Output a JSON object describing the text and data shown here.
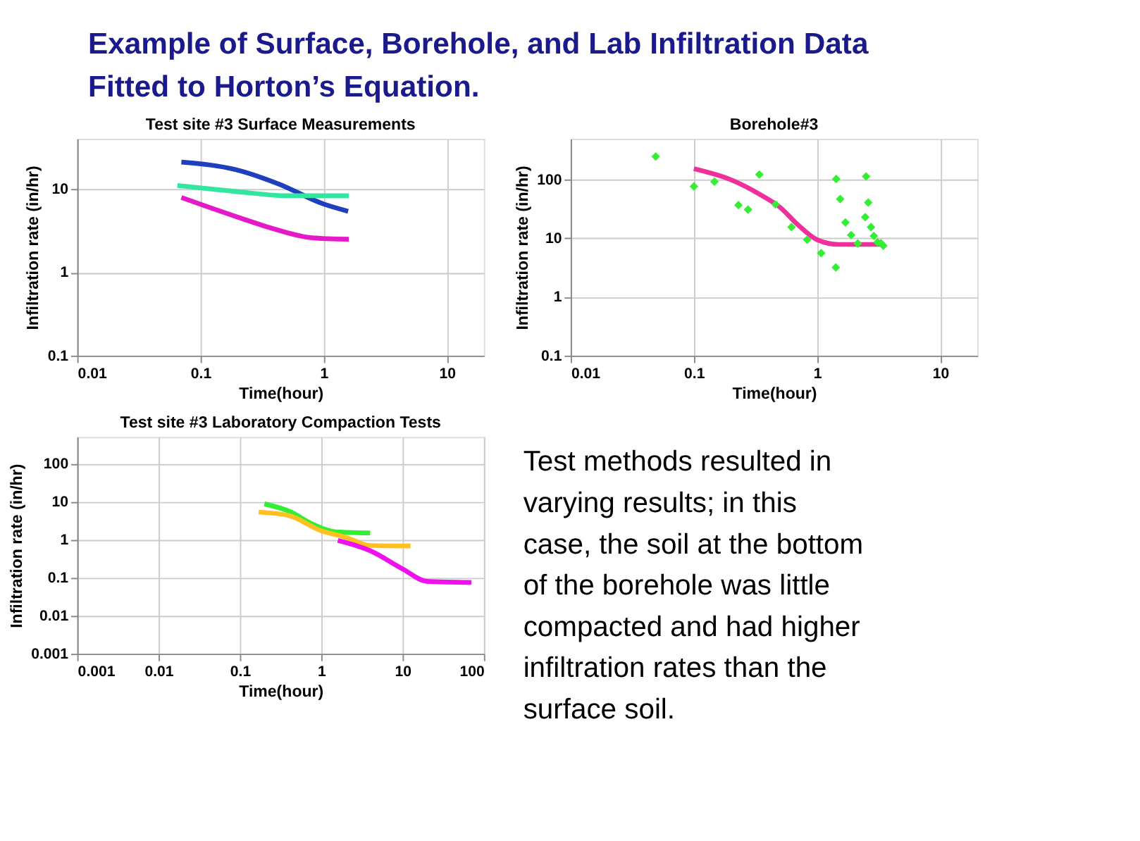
{
  "chart_data": [
    {
      "type": "other",
      "title": "Example of Surface, Borehole, and Lab Infiltration Data Fitted to Horton’s Equation."
    },
    {
      "type": "line",
      "title": "Test site #3 Surface Measurements",
      "xlabel": "Time(hour)",
      "ylabel": "Infiltration rate  (in/hr)",
      "log": "xy",
      "grid": true,
      "xlim": [
        0.01,
        20
      ],
      "ylim": [
        0.1,
        40
      ],
      "xticks": [
        0.01,
        0.1,
        1,
        10
      ],
      "yticks": [
        0.1,
        1,
        10
      ],
      "series": [
        {
          "color": "#1f3fbf",
          "x": [
            0.07,
            0.195,
            0.43,
            1.0,
            1.58
          ],
          "values": [
            21,
            17,
            11.5,
            6.6,
            5.4
          ]
        },
        {
          "color": "#33e6a0",
          "x": [
            0.065,
            0.2,
            0.5,
            1.6
          ],
          "values": [
            11,
            9.3,
            8.3,
            8.3
          ]
        },
        {
          "color": "#e619c8",
          "x": [
            0.07,
            0.2,
            0.4,
            0.8,
            1.6
          ],
          "values": [
            7.9,
            4.6,
            3.3,
            2.6,
            2.5
          ]
        }
      ]
    },
    {
      "type": "line",
      "title": "Borehole#3",
      "xlabel": "Time(hour)",
      "ylabel": "Infiltration rate  (in/hr)",
      "log": "xy",
      "grid": true,
      "xlim": [
        0.01,
        20
      ],
      "ylim": [
        0.1,
        500
      ],
      "xticks": [
        0.01,
        0.1,
        1,
        10
      ],
      "yticks": [
        0.1,
        1,
        10,
        100
      ],
      "series": [
        {
          "type": "line",
          "color": "#f0309a",
          "x": [
            0.1,
            0.2,
            0.35,
            0.5,
            0.7,
            1.0,
            1.5,
            3.5
          ],
          "values": [
            155,
            100,
            55,
            34,
            17,
            9.5,
            7.9,
            7.9
          ]
        },
        {
          "type": "scatter",
          "marker": "diamond",
          "color": "#33ee33",
          "x": [
            0.049,
            0.1,
            0.147,
            0.23,
            0.275,
            0.34,
            0.46,
            0.62,
            0.83,
            1.08,
            1.42,
            1.43,
            1.54,
            1.7,
            1.89,
            2.14,
            2.46,
            2.5,
            2.6,
            2.74,
            2.89,
            3.1,
            3.3,
            3.45
          ],
          "values": [
            250,
            77,
            93,
            37,
            31,
            123,
            38,
            15.6,
            9.5,
            5.6,
            3.2,
            103,
            47,
            18.7,
            11.4,
            8.2,
            23,
            114,
            41,
            15.6,
            11,
            8.6,
            8.3,
            7.5
          ]
        }
      ]
    },
    {
      "type": "line",
      "title": "Test site #3 Laboratory Compaction Tests",
      "xlabel": "Time(hour)",
      "ylabel": "Infiltration rate  (in/hr)",
      "log": "xy",
      "grid": true,
      "xlim": [
        0.001,
        100
      ],
      "ylim": [
        0.001,
        500
      ],
      "xticks": [
        0.001,
        0.01,
        0.1,
        1,
        10,
        100
      ],
      "yticks": [
        0.001,
        0.01,
        0.1,
        1,
        10,
        100
      ],
      "series": [
        {
          "color": "#33ee33",
          "x": [
            0.2,
            0.4,
            0.8,
            1.5,
            4
          ],
          "values": [
            8.7,
            5.6,
            2.5,
            1.6,
            1.5
          ]
        },
        {
          "color": "#ffc020",
          "x": [
            0.17,
            0.4,
            1,
            2,
            4,
            12.5
          ],
          "values": [
            5.3,
            4.3,
            1.7,
            1.15,
            0.7,
            0.68
          ]
        },
        {
          "color": "#ee11ee",
          "x": [
            1.6,
            4,
            10,
            20,
            70
          ],
          "values": [
            0.95,
            0.51,
            0.17,
            0.08,
            0.075
          ]
        }
      ]
    },
    {
      "type": "other",
      "annotations": [
        "Test methods resulted in varying results; in this case, the soil at the bottom of the borehole was little compacted and had higher infiltration rates than the surface soil."
      ]
    }
  ]
}
